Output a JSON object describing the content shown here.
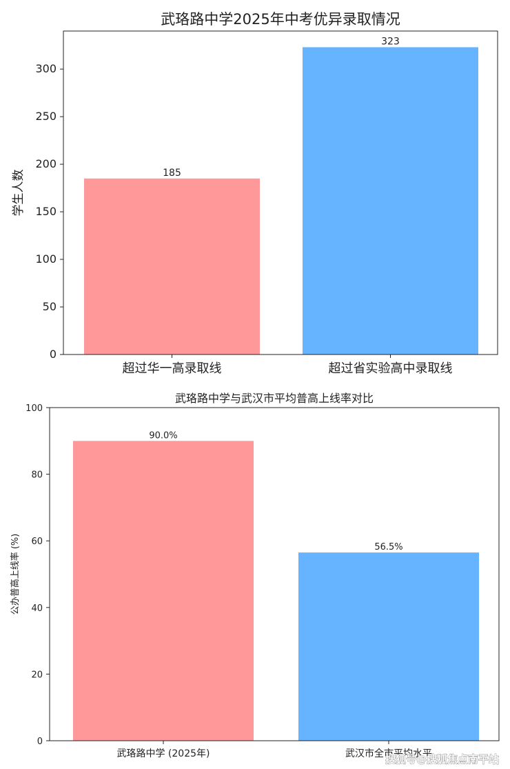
{
  "chart_data": [
    {
      "type": "bar",
      "title": "武珞路中学2025年中考优异录取情况",
      "xlabel": "",
      "ylabel": "学生人数",
      "categories": [
        "超过华一高录取线",
        "超过省实验高中录取线"
      ],
      "values": [
        185,
        323
      ],
      "data_labels": [
        "185",
        "323"
      ],
      "colors": [
        "#ff9999",
        "#66b3ff"
      ],
      "ylim": [
        0,
        340
      ],
      "yticks": [
        0,
        50,
        100,
        150,
        200,
        250,
        300
      ],
      "grid": false
    },
    {
      "type": "bar",
      "title": "武珞路中学与武汉市平均普高上线率对比",
      "xlabel": "",
      "ylabel": "公办普高上线率 (%)",
      "categories": [
        "武珞路中学 (2025年)",
        "武汉市全市平均水平"
      ],
      "values": [
        90.0,
        56.5
      ],
      "data_labels": [
        "90.0%",
        "56.5%"
      ],
      "colors": [
        "#ff9999",
        "#66b3ff"
      ],
      "ylim": [
        0,
        100
      ],
      "yticks": [
        0,
        20,
        40,
        60,
        80,
        100
      ],
      "grid": false
    }
  ],
  "watermark": "搜狐号@搜狐焦点南平站"
}
